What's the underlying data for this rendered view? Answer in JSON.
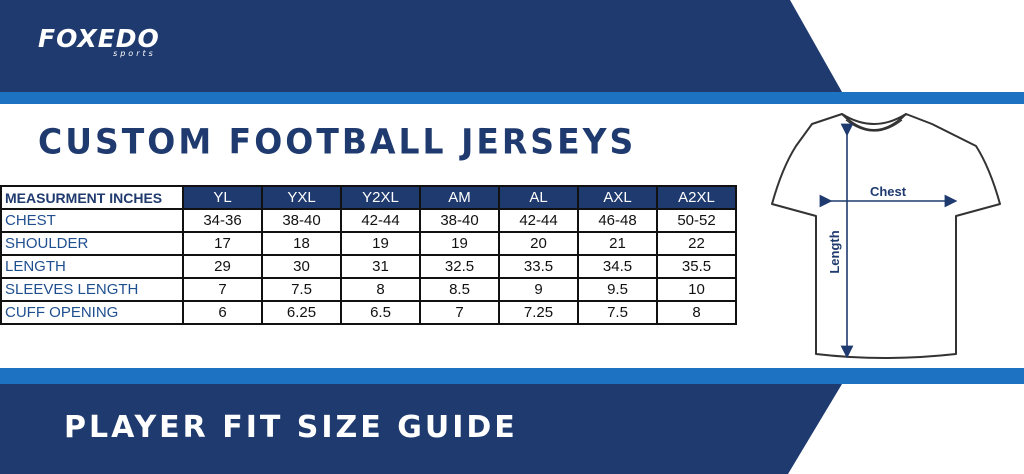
{
  "brand": {
    "name": "FOXEDO",
    "tagline": "sports"
  },
  "title": "CUSTOM FOOTBALL JERSEYS",
  "subtitle": "PLAYER FIT SIZE GUIDE",
  "colors": {
    "navy": "#1f3a6e",
    "accent_blue": "#1d72c2",
    "label_blue": "#1f4f8f",
    "white": "#ffffff"
  },
  "table": {
    "corner_label": "MEASURMENT INCHES",
    "columns": [
      "YL",
      "YXL",
      "Y2XL",
      "AM",
      "AL",
      "AXL",
      "A2XL"
    ],
    "rows": [
      {
        "label": "CHEST",
        "values": [
          "34-36",
          "38-40",
          "42-44",
          "38-40",
          "42-44",
          "46-48",
          "50-52"
        ]
      },
      {
        "label": "SHOULDER",
        "values": [
          "17",
          "18",
          "19",
          "19",
          "20",
          "21",
          "22"
        ]
      },
      {
        "label": "LENGTH",
        "values": [
          "29",
          "30",
          "31",
          "32.5",
          "33.5",
          "34.5",
          "35.5"
        ]
      },
      {
        "label": "SLEEVES LENGTH",
        "values": [
          "7",
          "7.5",
          "8",
          "8.5",
          "9",
          "9.5",
          "10"
        ]
      },
      {
        "label": "CUFF OPENING",
        "values": [
          "6",
          "6.25",
          "6.5",
          "7",
          "7.25",
          "7.5",
          "8"
        ]
      }
    ]
  },
  "diagram": {
    "chest_label": "Chest",
    "length_label": "Length"
  }
}
